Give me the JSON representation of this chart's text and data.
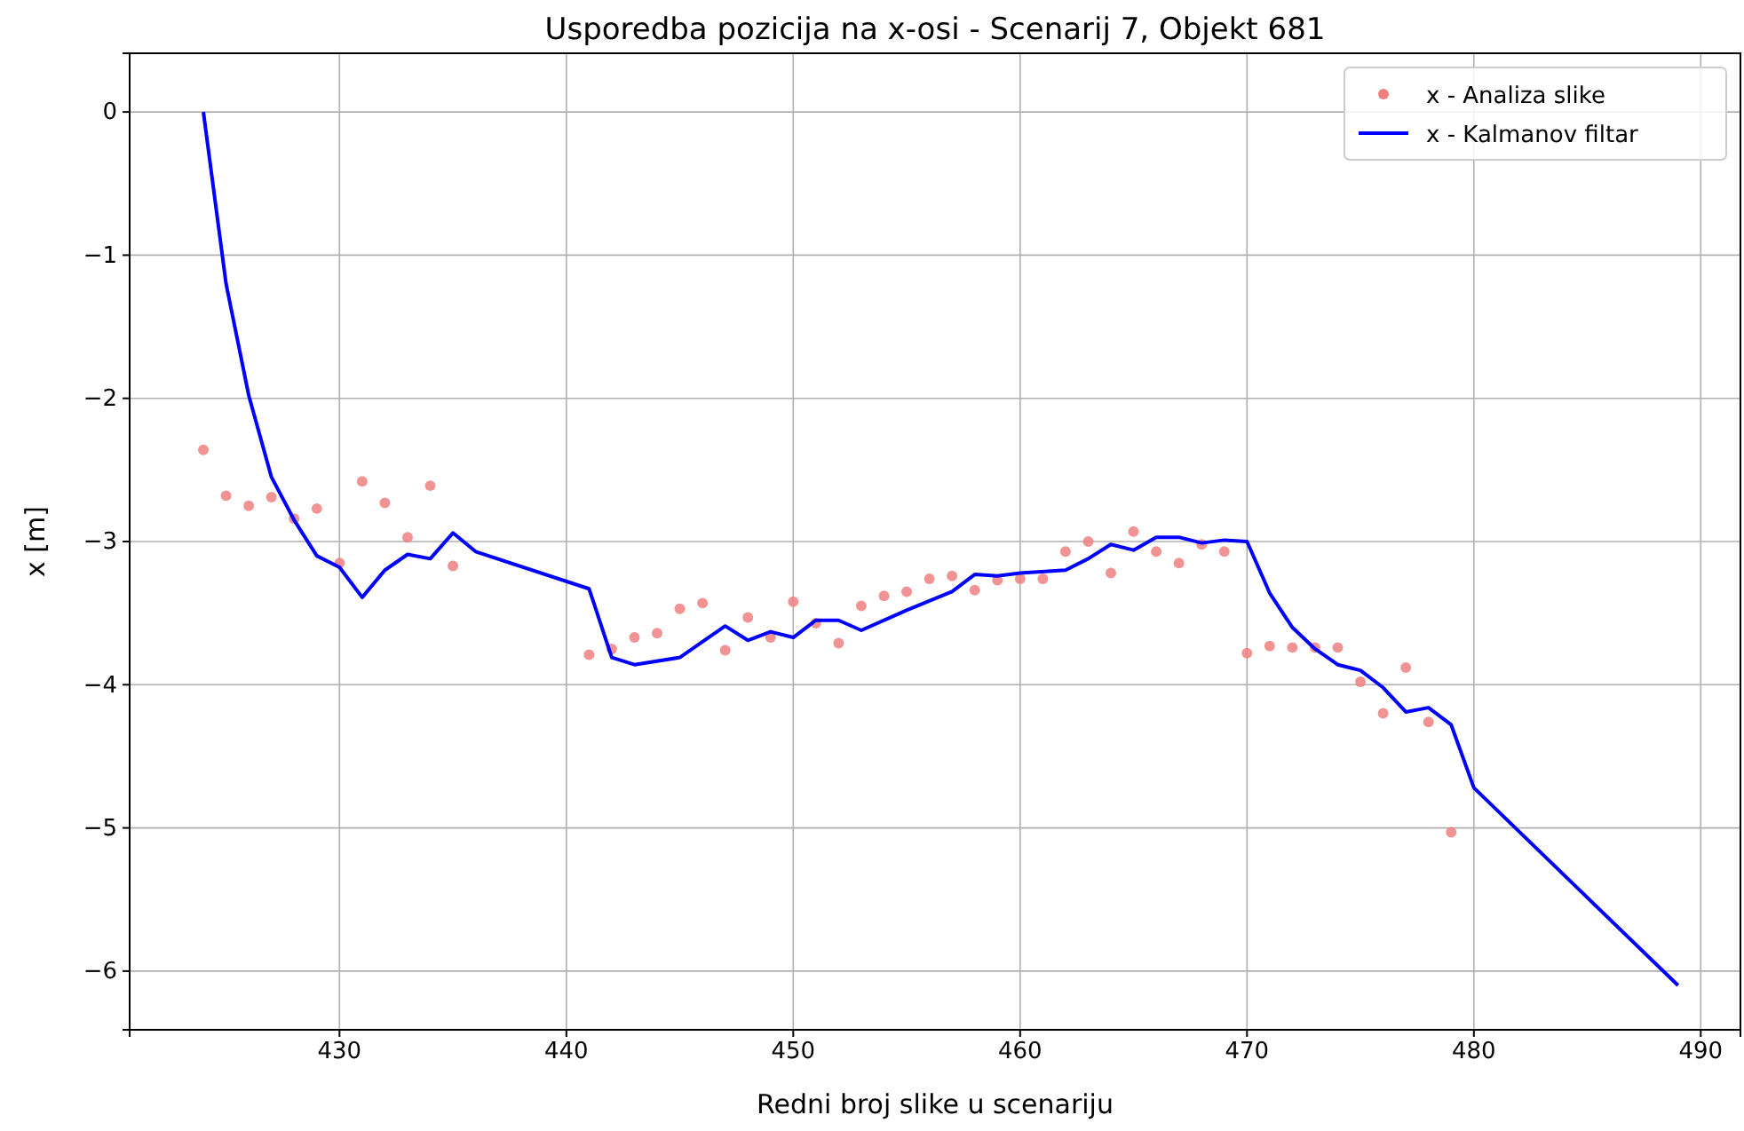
{
  "chart_data": {
    "type": "scatter",
    "title": "Usporedba pozicija na x-osi - Scenarij 7, Objekt 681",
    "xlabel": "Redni broj slike u scenariju",
    "ylabel": "x [m]",
    "xlim": [
      420.75,
      491.75
    ],
    "xticks": [
      430,
      440,
      450,
      460,
      470,
      480,
      490
    ],
    "ylim": [
      -6.41,
      0.41
    ],
    "yticks": [
      {
        "value": -6,
        "label": "−6"
      },
      {
        "value": -5,
        "label": "−5"
      },
      {
        "value": -4,
        "label": "−4"
      },
      {
        "value": -3,
        "label": "−3"
      },
      {
        "value": -2,
        "label": "−2"
      },
      {
        "value": -1,
        "label": "−1"
      },
      0
    ],
    "grid": true,
    "legend": "top right",
    "series": [
      {
        "name": "x - Analiza slike",
        "marker": "circle",
        "color": "#f08080",
        "x": [
          424,
          425,
          426,
          427,
          428,
          429,
          430,
          431,
          432,
          433,
          434,
          435,
          441,
          442,
          443,
          444,
          445,
          446,
          447,
          448,
          449,
          450,
          451,
          452,
          453,
          454,
          455,
          456,
          457,
          458,
          459,
          460,
          461,
          462,
          463,
          464,
          465,
          466,
          467,
          468,
          469,
          470,
          471,
          472,
          473,
          474,
          475,
          476,
          477,
          478,
          479
        ],
        "values": [
          -2.36,
          -2.68,
          -2.75,
          -2.69,
          -2.84,
          -2.77,
          -3.15,
          -2.58,
          -2.73,
          -2.97,
          -2.61,
          -3.17,
          -3.79,
          -3.75,
          -3.67,
          -3.64,
          -3.47,
          -3.43,
          -3.76,
          -3.53,
          -3.67,
          -3.42,
          -3.57,
          -3.71,
          -3.45,
          -3.38,
          -3.35,
          -3.26,
          -3.24,
          -3.34,
          -3.27,
          -3.26,
          -3.26,
          -3.07,
          -3.0,
          -3.22,
          -2.93,
          -3.07,
          -3.15,
          -3.02,
          -3.07,
          -3.78,
          -3.73,
          -3.74,
          -3.74,
          -3.74,
          -3.98,
          -4.2,
          -3.88,
          -4.26,
          -5.03
        ]
      },
      {
        "name": "x - Kalmanov filtar",
        "type": "line",
        "line_style": "solid",
        "color": "#0000ff",
        "x": [
          424,
          425,
          426,
          427,
          428,
          429,
          430,
          431,
          432,
          433,
          434,
          435,
          436,
          441,
          442,
          443,
          445,
          447,
          448,
          449,
          450,
          451,
          452,
          453,
          455,
          457,
          458,
          459,
          460,
          462,
          463,
          464,
          465,
          466,
          467,
          468,
          469,
          470,
          471,
          472,
          473,
          474,
          475,
          476,
          477,
          478,
          479,
          480,
          489
        ],
        "values": [
          0,
          -1.2,
          -1.98,
          -2.55,
          -2.85,
          -3.1,
          -3.18,
          -3.39,
          -3.2,
          -3.09,
          -3.12,
          -2.94,
          -3.07,
          -3.33,
          -3.81,
          -3.86,
          -3.81,
          -3.59,
          -3.69,
          -3.63,
          -3.67,
          -3.55,
          -3.55,
          -3.62,
          -3.48,
          -3.35,
          -3.23,
          -3.24,
          -3.22,
          -3.2,
          -3.12,
          -3.02,
          -3.06,
          -2.97,
          -2.97,
          -3.01,
          -2.99,
          -3.0,
          -3.36,
          -3.6,
          -3.75,
          -3.86,
          -3.9,
          -4.02,
          -4.19,
          -4.16,
          -4.28,
          -4.72,
          -6.1
        ]
      }
    ]
  }
}
